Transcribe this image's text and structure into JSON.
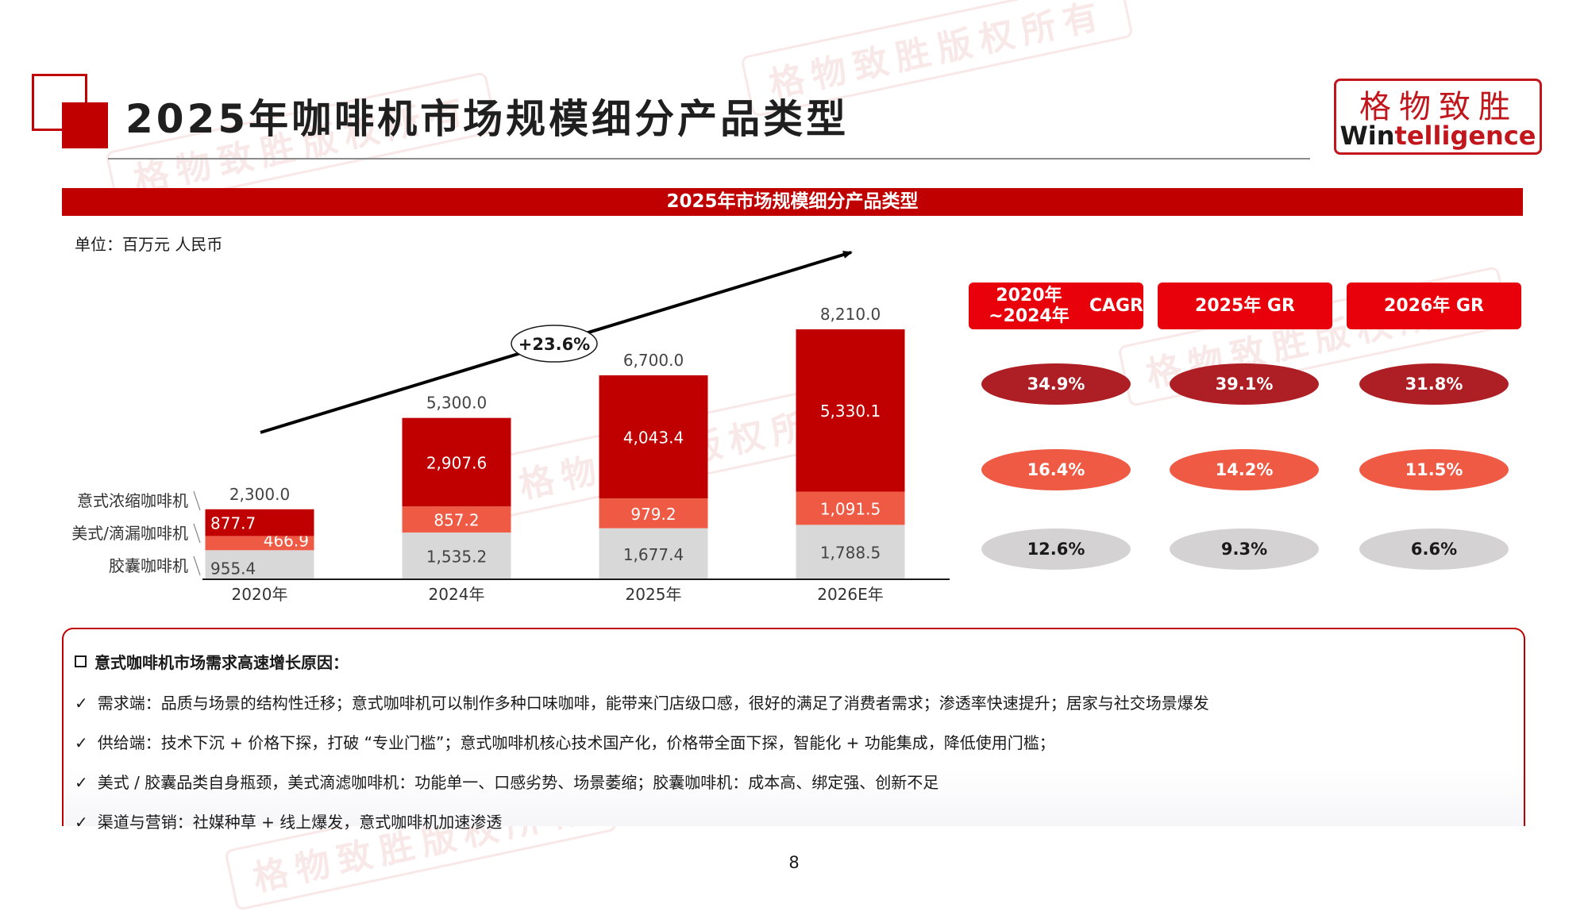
{
  "header": {
    "title": "2025年咖啡机市场规模细分产品类型",
    "logo_cn": "格物致胜",
    "logo_en_a": "Win",
    "logo_en_b": "telligence"
  },
  "watermark_text": "格物致胜版权所有",
  "banner": "2025年市场规模细分产品类型",
  "unit_label": "单位：百万元 人民币",
  "chart_data": {
    "type": "bar",
    "stacked": true,
    "categories": [
      "2020年",
      "2024年",
      "2025年",
      "2026E年"
    ],
    "series": [
      {
        "name": "胶囊咖啡机",
        "values": [
          955.4,
          1535.2,
          1677.4,
          1788.5
        ],
        "labels": [
          "955.4",
          "1,535.2",
          "1,677.4",
          "1,788.5"
        ],
        "color": "#d9d8d8"
      },
      {
        "name": "美式/滴漏咖啡机",
        "values": [
          466.9,
          857.2,
          979.2,
          1091.5
        ],
        "labels": [
          "466.9",
          "857.2",
          "979.2",
          "1,091.5"
        ],
        "color": "#ef5a44"
      },
      {
        "name": "意式浓缩咖啡机",
        "values": [
          877.7,
          2907.6,
          4043.4,
          5330.1
        ],
        "labels": [
          "877.7",
          "2,907.6",
          "4,043.4",
          "5,330.1"
        ],
        "color": "#c00000"
      }
    ],
    "totals": [
      2300.0,
      5300.0,
      6700.0,
      8210.0
    ],
    "total_labels": [
      "2,300.0",
      "5,300.0",
      "6,700.0",
      "8,210.0"
    ],
    "legend_placement": "left",
    "annotation": "+23.6%",
    "ylim": [
      0,
      8210
    ],
    "grid": false
  },
  "growth_table": {
    "headers": [
      "2020年~2024年 CAGR",
      "2025年 GR",
      "2026年 GR"
    ],
    "rows": [
      [
        "34.9%",
        "39.1%",
        "31.8%"
      ],
      [
        "16.4%",
        "14.2%",
        "11.5%"
      ],
      [
        "12.6%",
        "9.3%",
        "6.6%"
      ]
    ]
  },
  "reasons": {
    "title": "意式咖啡机市场需求高速增长原因：",
    "tick": "✓",
    "items": [
      "需求端：品质与场景的结构性迁移；意式咖啡机可以制作多种口味咖啡，能带来门店级口感，很好的满足了消费者需求；渗透率快速提升；居家与社交场景爆发",
      "供给端：技术下沉 + 价格下探，打破 “专业门槛”；意式咖啡机核心技术国产化，价格带全面下探，智能化 + 功能集成，降低使用门槛；",
      "美式 / 胶囊品类自身瓶颈，美式滴滤咖啡机：功能单一、口感劣势、场景萎缩；胶囊咖啡机：成本高、绑定强、创新不足",
      "渠道与营销：社媒种草 + 线上爆发，意式咖啡机加速渗透"
    ]
  },
  "page_number": "8"
}
